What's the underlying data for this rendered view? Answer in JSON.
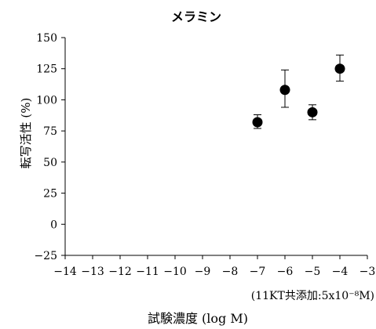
{
  "chart_data": {
    "type": "scatter",
    "title": "メラミン",
    "xlabel": "試験濃度 (log M)",
    "ylabel": "転写活性 (%)",
    "note": "(11KT共添加:5x10⁻⁸M)",
    "xlim": [
      -14,
      -3
    ],
    "ylim": [
      -25,
      150
    ],
    "x_ticks": [
      -14,
      -13,
      -12,
      -11,
      -10,
      -9,
      -8,
      -7,
      -6,
      -5,
      -4,
      -3
    ],
    "x_tick_labels": [
      "−14",
      "−13",
      "−12",
      "−11",
      "−10",
      "−9",
      "−8",
      "−7",
      "−6",
      "−5",
      "−4",
      "−3"
    ],
    "y_ticks": [
      150,
      125,
      100,
      75,
      50,
      25,
      0,
      -25
    ],
    "y_tick_labels": [
      "150",
      "125",
      "100",
      "75",
      "50",
      "25",
      "0",
      "−25"
    ],
    "grid": false,
    "legend": false,
    "series": [
      {
        "x": [
          -7,
          -6,
          -5,
          -4
        ],
        "y": [
          82,
          108,
          90,
          125
        ],
        "err_low": [
          77,
          94,
          84,
          115
        ],
        "err_high": [
          88,
          124,
          96,
          136
        ]
      }
    ],
    "marker_color": "#000000"
  }
}
